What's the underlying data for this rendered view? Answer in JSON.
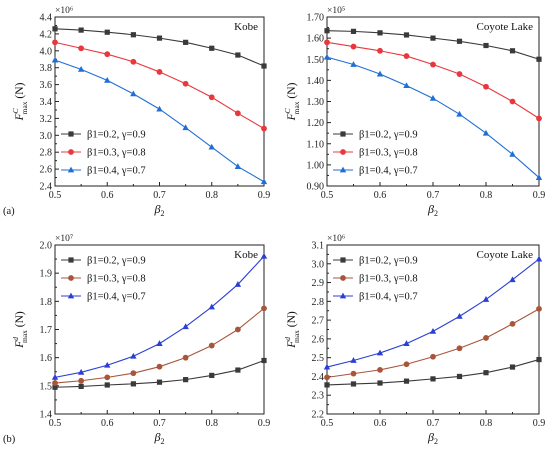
{
  "chart_data": [
    {
      "type": "line",
      "panel_label": "(a)",
      "title": "Kobe",
      "multiplier": "×10⁶",
      "ylabel": {
        "main": "F",
        "sup": "C",
        "sub": "max",
        "unit": " (N)"
      },
      "xlabel": {
        "main": "β",
        "sub": "2"
      },
      "xlim": [
        0.5,
        0.9
      ],
      "ylim": [
        2.4,
        4.4
      ],
      "xticks": [
        0.5,
        0.6,
        0.7,
        0.8,
        0.9
      ],
      "yticks": [
        2.4,
        2.6,
        2.8,
        3.0,
        3.2,
        3.4,
        3.6,
        3.8,
        4.0,
        4.2,
        4.4
      ],
      "ytick_decimals": 1,
      "legend_position": "bottom-left",
      "x": [
        0.5,
        0.55,
        0.6,
        0.65,
        0.7,
        0.75,
        0.8,
        0.85,
        0.9
      ],
      "series": [
        {
          "name": "β1=0.2, γ=0.9",
          "color": "#3a3a3a",
          "marker": "square",
          "values": [
            4.26,
            4.245,
            4.22,
            4.19,
            4.15,
            4.1,
            4.03,
            3.95,
            3.82
          ]
        },
        {
          "name": "β1=0.3, γ=0.8",
          "color": "#e8383d",
          "marker": "circle",
          "values": [
            4.1,
            4.03,
            3.96,
            3.87,
            3.75,
            3.61,
            3.45,
            3.26,
            3.08
          ]
        },
        {
          "name": "β1=0.4, γ=0.7",
          "color": "#1f6fd6",
          "marker": "triangle",
          "values": [
            3.89,
            3.78,
            3.65,
            3.49,
            3.31,
            3.09,
            2.86,
            2.63,
            2.45
          ]
        }
      ]
    },
    {
      "type": "line",
      "panel_label": "",
      "title": "Coyote Lake",
      "multiplier": "×10⁵",
      "ylabel": {
        "main": "F",
        "sup": "C",
        "sub": "max",
        "unit": " (N)"
      },
      "xlabel": {
        "main": "β",
        "sub": "2"
      },
      "xlim": [
        0.5,
        0.9
      ],
      "ylim": [
        0.9,
        1.7
      ],
      "xticks": [
        0.5,
        0.6,
        0.7,
        0.8,
        0.9
      ],
      "yticks": [
        0.9,
        1.0,
        1.1,
        1.2,
        1.3,
        1.4,
        1.5,
        1.6,
        1.7
      ],
      "ytick_decimals": 2,
      "legend_position": "bottom-left",
      "x": [
        0.5,
        0.55,
        0.6,
        0.65,
        0.7,
        0.75,
        0.8,
        0.85,
        0.9
      ],
      "series": [
        {
          "name": "β1=0.2, γ=0.9",
          "color": "#3a3a3a",
          "marker": "square",
          "values": [
            1.635,
            1.632,
            1.625,
            1.615,
            1.6,
            1.585,
            1.565,
            1.54,
            1.5
          ]
        },
        {
          "name": "β1=0.3, γ=0.8",
          "color": "#e8383d",
          "marker": "circle",
          "values": [
            1.58,
            1.56,
            1.54,
            1.515,
            1.475,
            1.43,
            1.37,
            1.3,
            1.22
          ]
        },
        {
          "name": "β1=0.4, γ=0.7",
          "color": "#1f6fd6",
          "marker": "triangle",
          "values": [
            1.51,
            1.475,
            1.43,
            1.375,
            1.315,
            1.24,
            1.15,
            1.05,
            0.94
          ]
        }
      ]
    },
    {
      "type": "line",
      "panel_label": "(b)",
      "title": "Kobe",
      "multiplier": "×10⁷",
      "ylabel": {
        "main": "F",
        "sup": "d",
        "sub": "max",
        "unit": " (N)"
      },
      "xlabel": {
        "main": "β",
        "sub": "2"
      },
      "xlim": [
        0.5,
        0.9
      ],
      "ylim": [
        1.4,
        2.0
      ],
      "xticks": [
        0.5,
        0.6,
        0.7,
        0.8,
        0.9
      ],
      "yticks": [
        1.4,
        1.5,
        1.6,
        1.7,
        1.8,
        1.9,
        2.0
      ],
      "ytick_decimals": 1,
      "legend_position": "top-left",
      "x": [
        0.5,
        0.55,
        0.6,
        0.65,
        0.7,
        0.75,
        0.8,
        0.85,
        0.9
      ],
      "series": [
        {
          "name": "β1=0.2, γ=0.9",
          "color": "#3a3a3a",
          "marker": "square",
          "values": [
            1.495,
            1.498,
            1.503,
            1.507,
            1.513,
            1.522,
            1.537,
            1.556,
            1.59
          ]
        },
        {
          "name": "β1=0.3, γ=0.8",
          "color": "#a8553b",
          "marker": "circle",
          "values": [
            1.51,
            1.518,
            1.53,
            1.545,
            1.568,
            1.6,
            1.643,
            1.7,
            1.775
          ]
        },
        {
          "name": "β1=0.4, γ=0.7",
          "color": "#2b3fd6",
          "marker": "triangle",
          "values": [
            1.53,
            1.548,
            1.573,
            1.605,
            1.65,
            1.71,
            1.78,
            1.86,
            1.96
          ]
        }
      ]
    },
    {
      "type": "line",
      "panel_label": "",
      "title": "Coyote Lake",
      "multiplier": "×10⁶",
      "ylabel": {
        "main": "F",
        "sup": "d",
        "sub": "max",
        "unit": " (N)"
      },
      "xlabel": {
        "main": "β",
        "sub": "2"
      },
      "xlim": [
        0.5,
        0.9
      ],
      "ylim": [
        2.2,
        3.1
      ],
      "xticks": [
        0.5,
        0.6,
        0.7,
        0.8,
        0.9
      ],
      "yticks": [
        2.2,
        2.3,
        2.4,
        2.5,
        2.6,
        2.7,
        2.8,
        2.9,
        3.0,
        3.1
      ],
      "ytick_decimals": 1,
      "legend_position": "top-left",
      "x": [
        0.5,
        0.55,
        0.6,
        0.65,
        0.7,
        0.75,
        0.8,
        0.85,
        0.9
      ],
      "series": [
        {
          "name": "β1=0.2, γ=0.9",
          "color": "#3a3a3a",
          "marker": "square",
          "values": [
            2.355,
            2.36,
            2.365,
            2.375,
            2.387,
            2.4,
            2.42,
            2.45,
            2.49
          ]
        },
        {
          "name": "β1=0.3, γ=0.8",
          "color": "#a8553b",
          "marker": "circle",
          "values": [
            2.395,
            2.415,
            2.435,
            2.465,
            2.505,
            2.55,
            2.605,
            2.68,
            2.76
          ]
        },
        {
          "name": "β1=0.4, γ=0.7",
          "color": "#2b3fd6",
          "marker": "triangle",
          "values": [
            2.45,
            2.485,
            2.525,
            2.575,
            2.64,
            2.72,
            2.81,
            2.915,
            3.025
          ]
        }
      ]
    }
  ]
}
